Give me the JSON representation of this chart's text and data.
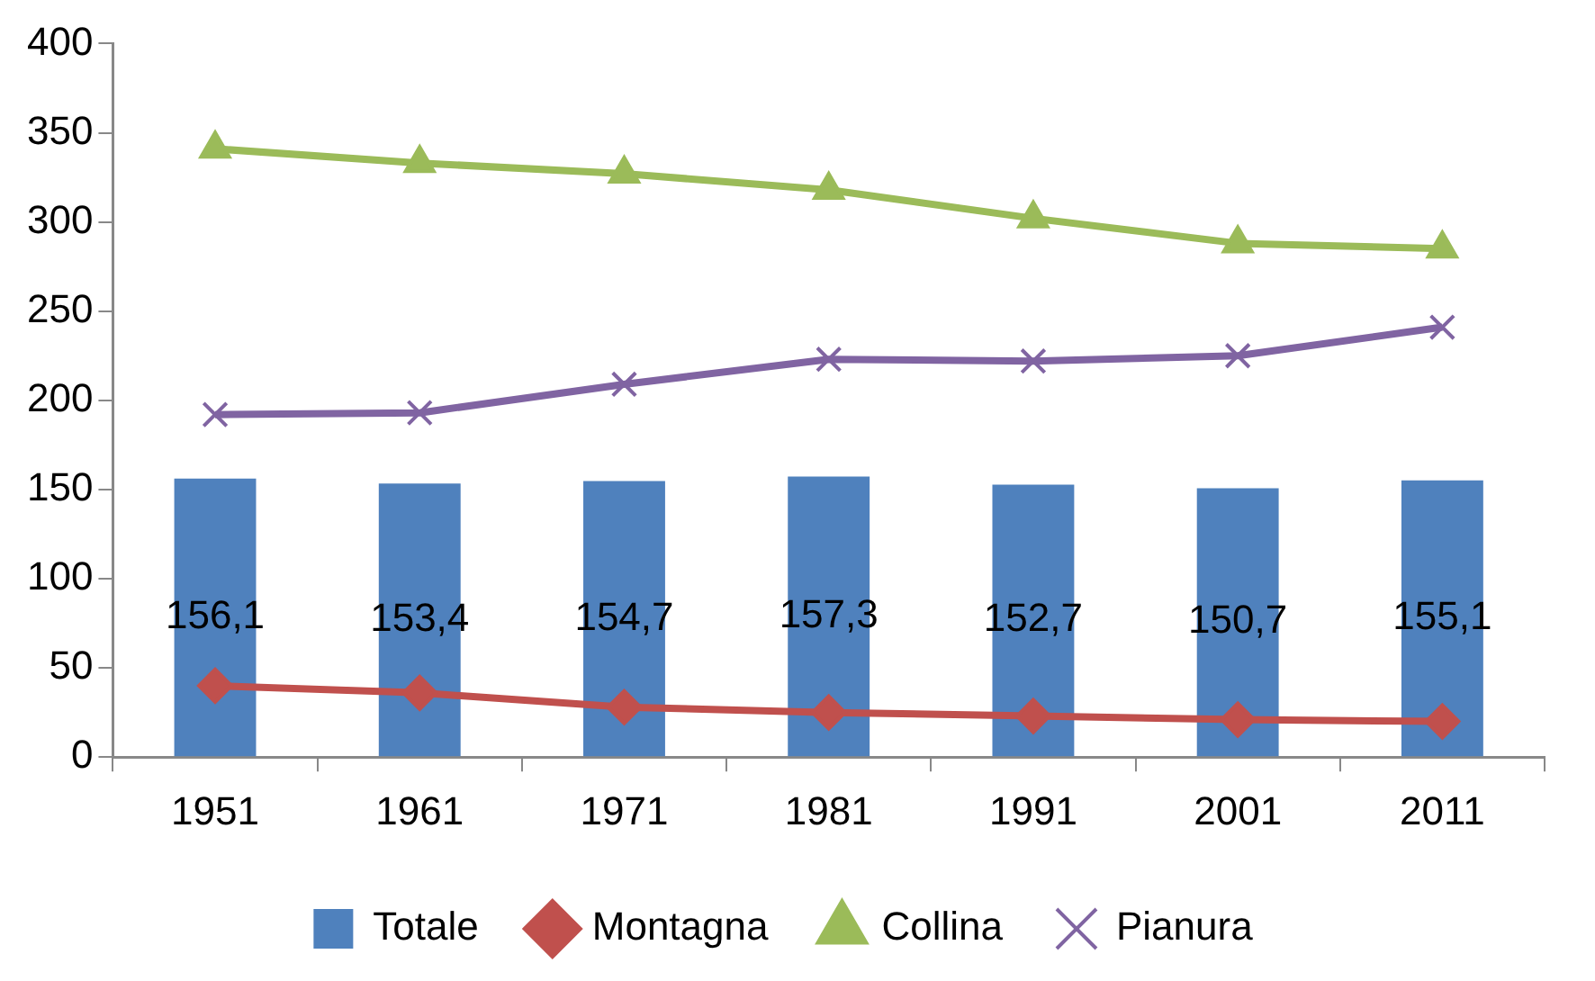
{
  "chart_data": {
    "type": "line",
    "categories": [
      "1951",
      "1961",
      "1971",
      "1981",
      "1991",
      "2001",
      "2011"
    ],
    "series": [
      {
        "name": "Totale",
        "type": "bar",
        "color": "#4f81bd",
        "values": [
          156.1,
          153.4,
          154.7,
          157.3,
          152.7,
          150.7,
          155.1
        ],
        "value_labels": [
          "156,1",
          "153,4",
          "154,7",
          "157,3",
          "152,7",
          "150,7",
          "155,1"
        ]
      },
      {
        "name": "Montagna",
        "color": "#c0504d",
        "marker": "diamond",
        "values": [
          40,
          36,
          28,
          25,
          23,
          21,
          20
        ]
      },
      {
        "name": "Collina",
        "color": "#9bbb59",
        "marker": "triangle",
        "values": [
          341,
          333,
          327,
          318,
          302,
          288,
          285
        ]
      },
      {
        "name": "Pianura",
        "color": "#8064a2",
        "marker": "cross",
        "values": [
          192,
          193,
          209,
          223,
          222,
          225,
          241
        ]
      }
    ],
    "ylim": [
      0,
      400
    ],
    "yticks": [
      0,
      50,
      100,
      150,
      200,
      250,
      300,
      350,
      400
    ],
    "grid": false,
    "legend": "bottom"
  }
}
